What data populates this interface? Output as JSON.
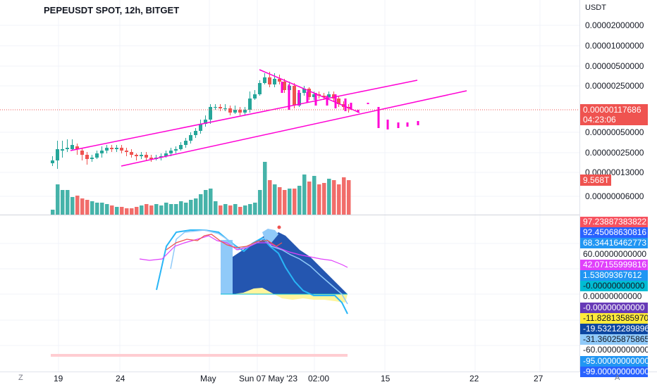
{
  "symbol_title": "PEPEUSDT SPOT, 12h, BITGET",
  "price_axis": {
    "unit": "USDT",
    "ticks": [
      "0.00002000000",
      "0.00001000000",
      "0.00000500000",
      "0.00000250000",
      "0.00000050000",
      "0.00000025000",
      "0.00000013000",
      "0.00000006000"
    ],
    "last_price": "0.00000117686",
    "countdown": "04:23:06",
    "volume_tag": "9.568T"
  },
  "oscillator_axis": {
    "tags": [
      {
        "text": "97.23887383822",
        "bg": "#f7525f",
        "fg": "#ffffff"
      },
      {
        "text": "92.45068630816",
        "bg": "#2962ff",
        "fg": "#ffffff"
      },
      {
        "text": "68.34416462773",
        "bg": "#2196f3",
        "fg": "#ffffff"
      },
      {
        "text": "60.00000000000",
        "bg": "#ffffff",
        "fg": "#131722"
      },
      {
        "text": "42.07155999816",
        "bg": "#e040fb",
        "fg": "#ffffff"
      },
      {
        "text": "1.53809367612",
        "bg": "#2196f3",
        "fg": "#ffffff"
      },
      {
        "text": "-0.00000000000",
        "bg": "#00bcd4",
        "fg": "#131722"
      },
      {
        "text": "0.00000000000",
        "bg": "#ffffff",
        "fg": "#131722"
      },
      {
        "text": "-0.00000000000",
        "bg": "#673ab7",
        "fg": "#ffffff"
      },
      {
        "text": "-11.82813585970",
        "bg": "#ffeb3b",
        "fg": "#131722"
      },
      {
        "text": "-19.53212289896",
        "bg": "#0d47a1",
        "fg": "#ffffff"
      },
      {
        "text": "-31.36025875865",
        "bg": "#90caf9",
        "fg": "#131722"
      },
      {
        "text": "-60.00000000000",
        "bg": "#ffffff",
        "fg": "#131722"
      },
      {
        "text": "-95.00000000000",
        "bg": "#2196f3",
        "fg": "#ffffff"
      },
      {
        "text": "-99.00000000000",
        "bg": "#2962ff",
        "fg": "#ffffff"
      }
    ]
  },
  "time_axis": [
    "19",
    "24",
    "May",
    "Sun 07 May '23",
    "02:00",
    "15",
    "22",
    "27"
  ],
  "corner_buttons": {
    "left": "Z",
    "right": "A"
  },
  "colors": {
    "up": "#26a69a",
    "down": "#ef5350",
    "trend": "#ff00d4",
    "last_price": "#ef5350"
  }
}
